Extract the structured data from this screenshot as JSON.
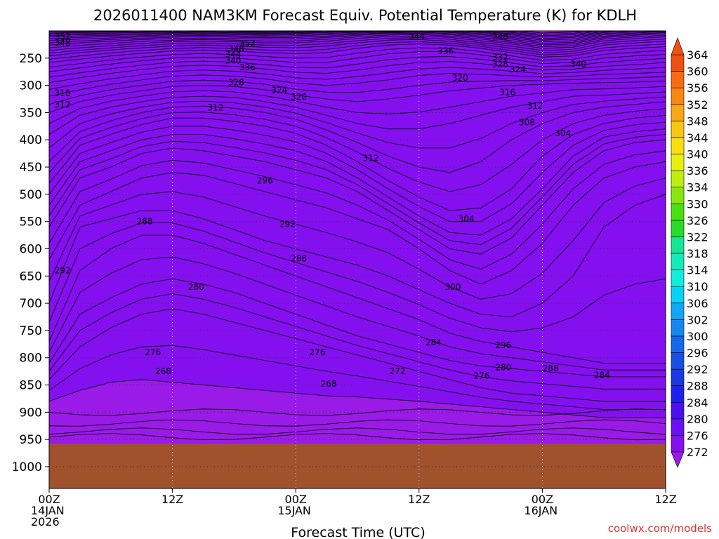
{
  "chart_data": {
    "type": "heatmap",
    "title": "2026011400 NAM3KM Forecast Equiv. Potential Temperature (K) for KDLH",
    "xlabel": "Forecast Time (UTC)",
    "ylabel": "",
    "watermark": "coolwx.com/models",
    "x_ticks": [
      {
        "hour": 0,
        "lines": [
          "00Z",
          "14JAN",
          "2026"
        ]
      },
      {
        "hour": 12,
        "lines": [
          "12Z"
        ]
      },
      {
        "hour": 24,
        "lines": [
          "00Z",
          "15JAN"
        ]
      },
      {
        "hour": 36,
        "lines": [
          "12Z"
        ]
      },
      {
        "hour": 48,
        "lines": [
          "00Z",
          "16JAN"
        ]
      },
      {
        "hour": 60,
        "lines": [
          "12Z"
        ]
      }
    ],
    "x_range_hours": [
      0,
      60
    ],
    "y_ticks_hpa": [
      250,
      300,
      350,
      400,
      450,
      500,
      550,
      600,
      650,
      700,
      750,
      800,
      850,
      900,
      950,
      1000
    ],
    "y_range_hpa": [
      200,
      1040
    ],
    "surface_pressure_hpa": 958,
    "colorbar_levels": [
      272,
      276,
      280,
      284,
      288,
      292,
      296,
      300,
      302,
      306,
      310,
      314,
      318,
      322,
      326,
      330,
      334,
      336,
      340,
      344,
      348,
      352,
      356,
      360,
      364
    ],
    "colorbar_colors": [
      "#9a1ae8",
      "#8410f0",
      "#6a10f2",
      "#4a10f0",
      "#2020ec",
      "#1838e4",
      "#1850e6",
      "#1468ec",
      "#1488f0",
      "#10a8f4",
      "#06d4f4",
      "#10eedc",
      "#14ecbc",
      "#10e898",
      "#28dc28",
      "#4ae010",
      "#88e80e",
      "#c0ee10",
      "#e8f010",
      "#f8e010",
      "#f8c810",
      "#f8a810",
      "#f88810",
      "#f86c10",
      "#f05010"
    ],
    "surface_color": "#a0522d",
    "contour_labels": [
      {
        "text": "352",
        "hour": 1.3,
        "hpa": 210
      },
      {
        "text": "348",
        "hour": 1.3,
        "hpa": 222
      },
      {
        "text": "352",
        "hour": 19.3,
        "hpa": 223
      },
      {
        "text": "348",
        "hour": 18.2,
        "hpa": 233
      },
      {
        "text": "344",
        "hour": 17.9,
        "hpa": 243
      },
      {
        "text": "340",
        "hour": 17.9,
        "hpa": 255
      },
      {
        "text": "336",
        "hour": 19.3,
        "hpa": 267
      },
      {
        "text": "344",
        "hour": 35.8,
        "hpa": 211
      },
      {
        "text": "348",
        "hour": 43.9,
        "hpa": 211
      },
      {
        "text": "336",
        "hour": 38.6,
        "hpa": 237
      },
      {
        "text": "332",
        "hour": 43.9,
        "hpa": 248
      },
      {
        "text": "328",
        "hour": 43.9,
        "hpa": 261
      },
      {
        "text": "324",
        "hour": 45.6,
        "hpa": 271
      },
      {
        "text": "340",
        "hour": 51.5,
        "hpa": 261
      },
      {
        "text": "320",
        "hour": 40.0,
        "hpa": 286
      },
      {
        "text": "328",
        "hour": 18.2,
        "hpa": 295
      },
      {
        "text": "324",
        "hour": 22.4,
        "hpa": 309
      },
      {
        "text": "320",
        "hour": 24.3,
        "hpa": 321
      },
      {
        "text": "316",
        "hour": 44.6,
        "hpa": 313
      },
      {
        "text": "316",
        "hour": 1.3,
        "hpa": 314
      },
      {
        "text": "312",
        "hour": 1.3,
        "hpa": 335
      },
      {
        "text": "312",
        "hour": 16.2,
        "hpa": 341
      },
      {
        "text": "312",
        "hour": 47.3,
        "hpa": 338
      },
      {
        "text": "308",
        "hour": 46.5,
        "hpa": 368
      },
      {
        "text": "304",
        "hour": 50.0,
        "hpa": 388
      },
      {
        "text": "312",
        "hour": 31.3,
        "hpa": 434
      },
      {
        "text": "296",
        "hour": 21.0,
        "hpa": 475
      },
      {
        "text": "304",
        "hour": 40.6,
        "hpa": 545
      },
      {
        "text": "288",
        "hour": 9.3,
        "hpa": 550
      },
      {
        "text": "292",
        "hour": 23.2,
        "hpa": 555
      },
      {
        "text": "288",
        "hour": 24.3,
        "hpa": 618
      },
      {
        "text": "292",
        "hour": 1.3,
        "hpa": 640
      },
      {
        "text": "280",
        "hour": 14.3,
        "hpa": 670
      },
      {
        "text": "300",
        "hour": 39.3,
        "hpa": 670
      },
      {
        "text": "284",
        "hour": 37.4,
        "hpa": 772
      },
      {
        "text": "296",
        "hour": 44.2,
        "hpa": 777
      },
      {
        "text": "276",
        "hour": 10.1,
        "hpa": 790
      },
      {
        "text": "276",
        "hour": 26.1,
        "hpa": 790
      },
      {
        "text": "280",
        "hour": 44.2,
        "hpa": 818
      },
      {
        "text": "288",
        "hour": 48.8,
        "hpa": 820
      },
      {
        "text": "268",
        "hour": 11.1,
        "hpa": 825
      },
      {
        "text": "272",
        "hour": 33.9,
        "hpa": 825
      },
      {
        "text": "276",
        "hour": 42.1,
        "hpa": 833
      },
      {
        "text": "284",
        "hour": 53.8,
        "hpa": 832
      },
      {
        "text": "268",
        "hour": 27.2,
        "hpa": 848
      }
    ]
  }
}
